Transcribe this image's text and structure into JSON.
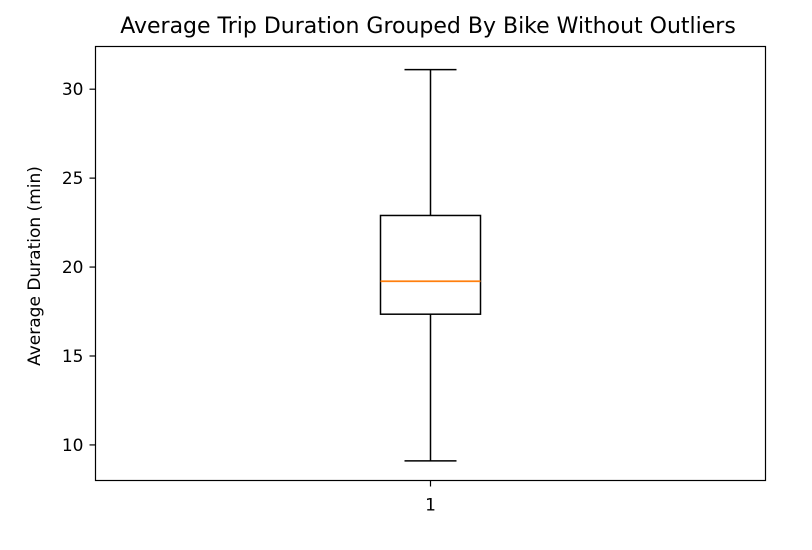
{
  "chart_data": {
    "type": "box",
    "title": "Average Trip Duration Grouped By Bike Without Outliers",
    "xlabel": "",
    "ylabel": "Average Duration (min)",
    "categories": [
      "1"
    ],
    "ylim": [
      8.0,
      32.4
    ],
    "yticks": [
      10,
      15,
      20,
      25,
      30
    ],
    "ytick_labels": [
      "10",
      "15",
      "20",
      "25",
      "30"
    ],
    "grid": false,
    "boxes": [
      {
        "category": "1",
        "whisker_low": 9.1,
        "q1": 17.35,
        "median": 19.2,
        "q3": 22.9,
        "whisker_high": 31.1
      }
    ],
    "colors": {
      "box": "#000000",
      "median": "#ff7f0e",
      "axes": "#000000"
    }
  }
}
